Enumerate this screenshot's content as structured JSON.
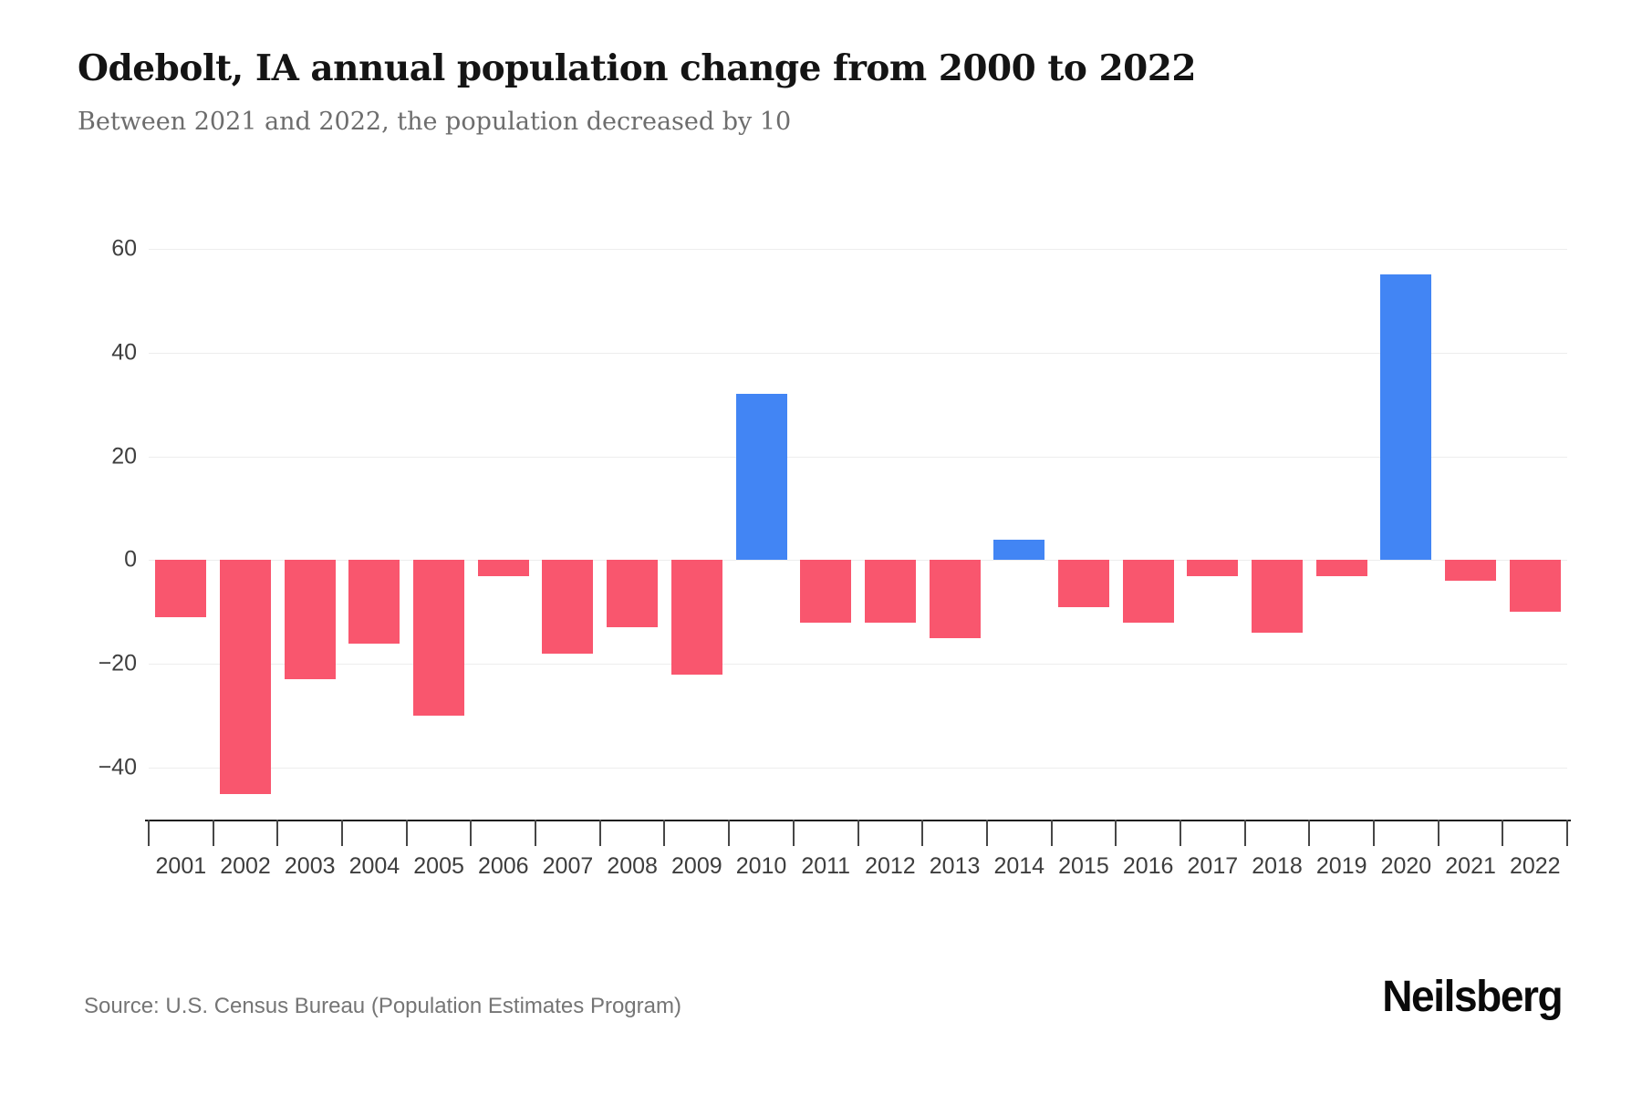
{
  "header": {
    "title": "Odebolt, IA annual population change from 2000 to 2022",
    "subtitle": "Between 2021 and 2022, the population decreased by 10"
  },
  "chart_data": {
    "type": "bar",
    "title": "Odebolt, IA annual population change from 2000 to 2022",
    "subtitle": "Between 2021 and 2022, the population decreased by 10",
    "categories": [
      "2001",
      "2002",
      "2003",
      "2004",
      "2005",
      "2006",
      "2007",
      "2008",
      "2009",
      "2010",
      "2011",
      "2012",
      "2013",
      "2014",
      "2015",
      "2016",
      "2017",
      "2018",
      "2019",
      "2020",
      "2021",
      "2022"
    ],
    "values": [
      -11,
      -45,
      -23,
      -16,
      -30,
      -3,
      -18,
      -13,
      -22,
      32,
      -12,
      -12,
      -15,
      4,
      -9,
      -12,
      -3,
      -14,
      -3,
      55,
      -4,
      -10
    ],
    "xlabel": "",
    "ylabel": "",
    "ylim": [
      -50,
      60
    ],
    "yticks": [
      60,
      40,
      20,
      0,
      -20,
      -40
    ],
    "grid": true,
    "legend_position": "none",
    "positive_color": "#4285F4",
    "negative_color": "#F9566E"
  },
  "footer": {
    "source": "Source: U.S. Census Bureau (Population Estimates Program)",
    "logo": "Neilsberg"
  }
}
